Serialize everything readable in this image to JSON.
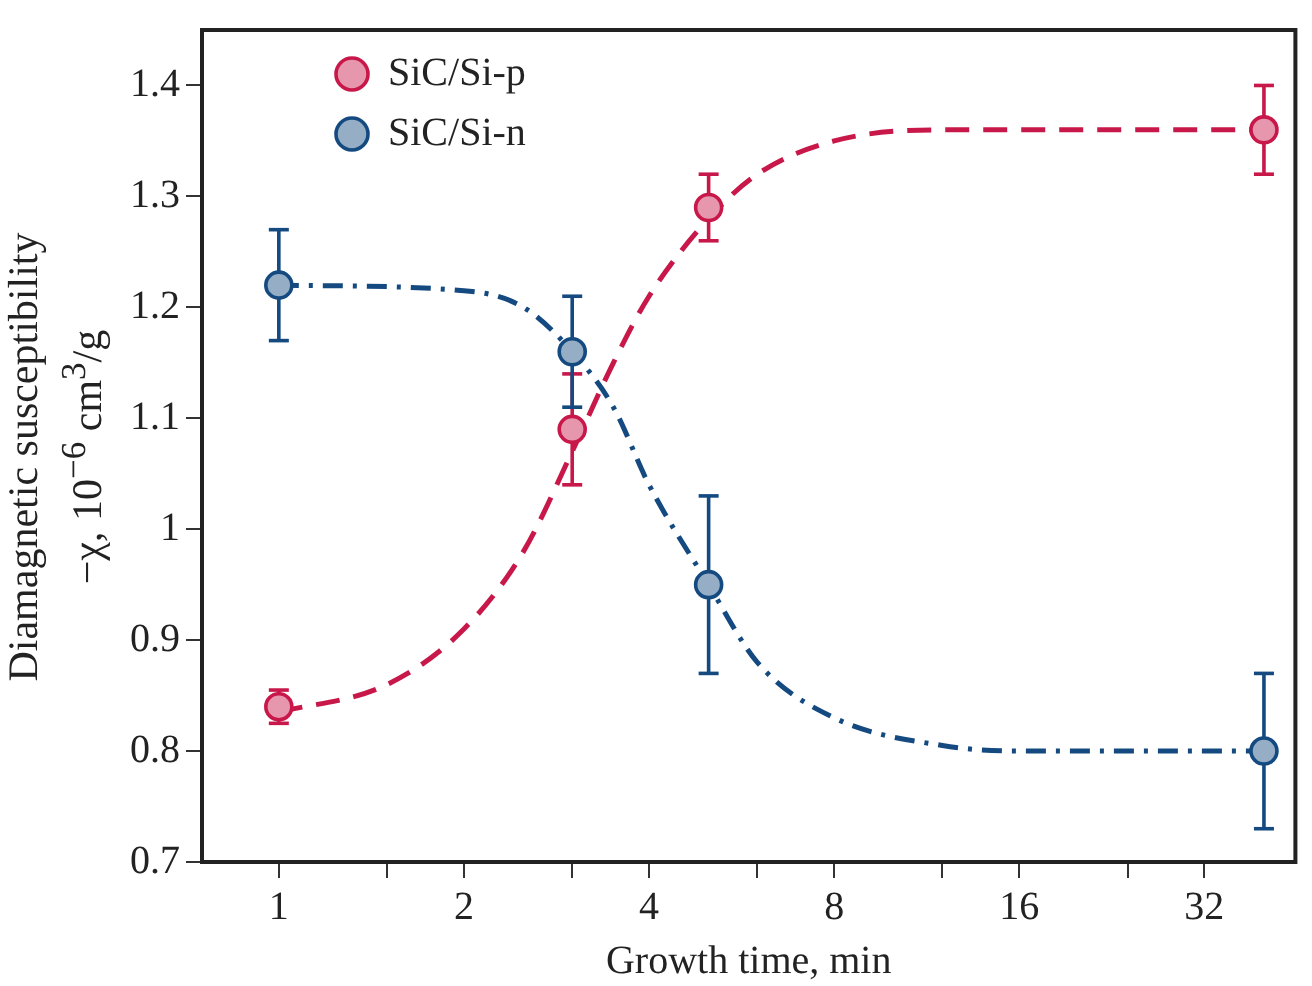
{
  "chart_data": {
    "type": "scatter",
    "xlabel": "Growth time, min",
    "ylabel": "Diamagnetic susceptibility\n−χ, 10$^{−6}$ cm$^{3}$/g",
    "log": "x",
    "xlim": [
      0.75,
      45
    ],
    "xticks": [
      1,
      {
        "value": 1.5,
        "label": null
      },
      2,
      {
        "value": 3,
        "label": null
      },
      4,
      {
        "value": 6,
        "label": null
      },
      8,
      {
        "value": 12,
        "label": null
      },
      16,
      {
        "value": 24,
        "label": null
      },
      32
    ],
    "ylim": [
      0.7,
      1.45
    ],
    "yticks": [
      0.7,
      0.8,
      0.9,
      1.0,
      1.1,
      1.2,
      1.3,
      1.4
    ],
    "legend": "top left",
    "marker": "circle",
    "grid": false,
    "series": [
      {
        "name": "SiC/Si-p",
        "color": "#c8184a",
        "x": [
          1,
          3,
          5,
          40
        ],
        "values": [
          0.84,
          1.09,
          1.29,
          1.36
        ],
        "errors": [
          0.015,
          0.05,
          0.03,
          0.04
        ]
      },
      {
        "name": "SiC/Si-n",
        "color": "#144a80",
        "x": [
          1,
          3,
          5,
          40
        ],
        "values": [
          1.22,
          1.16,
          0.95,
          0.8
        ],
        "errors": [
          0.05,
          0.05,
          0.08,
          0.07
        ]
      },
      {
        "type": "line",
        "line_style": "dashed",
        "marker": "none",
        "color": "#c8184a",
        "x": [
          1,
          1.5,
          2,
          2.5,
          3,
          3.5,
          4,
          5,
          6,
          8,
          12,
          40
        ],
        "values": [
          0.835,
          0.86,
          0.91,
          0.98,
          1.07,
          1.15,
          1.21,
          1.28,
          1.32,
          1.35,
          1.36,
          1.36
        ]
      },
      {
        "type": "line",
        "line_style": "dotted",
        "marker": "none",
        "color": "#144a80",
        "x": [
          1,
          2,
          2.5,
          3,
          3.5,
          4,
          5,
          6,
          8,
          12,
          16,
          40
        ],
        "values": [
          1.22,
          1.215,
          1.2,
          1.16,
          1.11,
          1.04,
          0.95,
          0.88,
          0.83,
          0.805,
          0.8,
          0.8
        ]
      }
    ]
  }
}
